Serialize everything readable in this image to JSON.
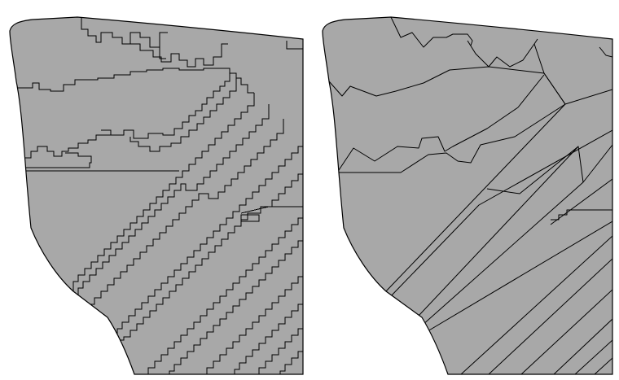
{
  "figure": {
    "panels": [
      {
        "name": "left-panel",
        "boundary_style": "staircase"
      },
      {
        "name": "right-panel",
        "boundary_style": "straight"
      }
    ],
    "colors": {
      "region_fill": "#a8a8a8",
      "boundary": "#000000",
      "background": "#ffffff"
    }
  }
}
